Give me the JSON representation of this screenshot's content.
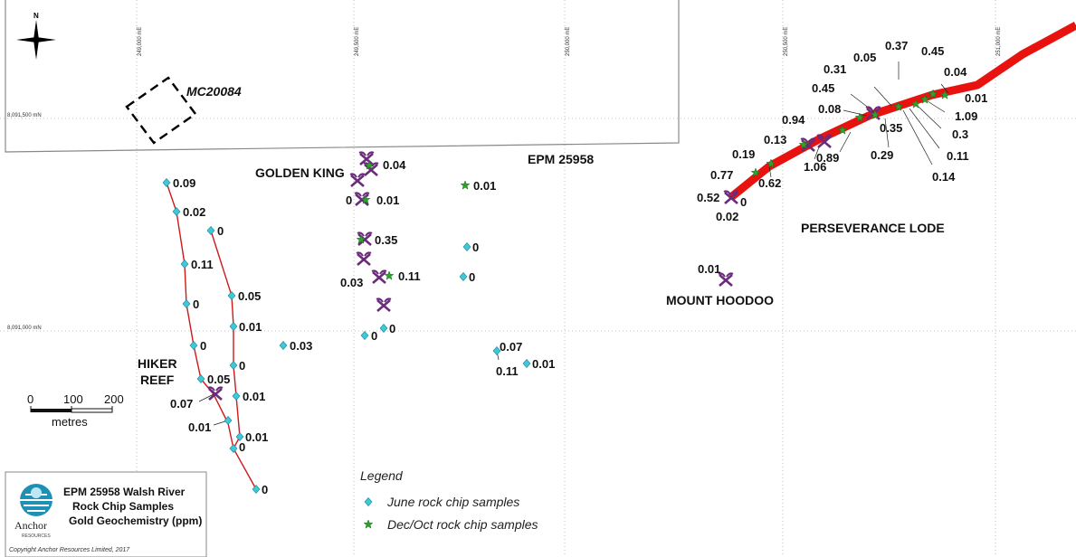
{
  "grid": {
    "easting": [
      "249,000 mE",
      "249,500 mE",
      "250,000 mE",
      "250,500 mE",
      "251,000 mE"
    ],
    "northing": [
      "8,091,500 mN",
      "8,091,000 mN"
    ]
  },
  "north_arrow": {
    "label": "N"
  },
  "labels": {
    "mc": "MC20084",
    "golden_king": "GOLDEN KING",
    "epm": "EPM 25958",
    "perseverance": "PERSEVERANCE LODE",
    "mount_hoodoo": "MOUNT HOODOO",
    "hiker_1": "HIKER",
    "hiker_2": "REEF"
  },
  "samples": {
    "hiker_west": [
      "0.09",
      "0.02",
      "0.11",
      "0",
      "0",
      "0.05",
      "0.07",
      "0.01",
      "0",
      "0"
    ],
    "hiker_east": [
      "0",
      "0.05",
      "0.01",
      "0",
      "0.01",
      "0.01",
      "0"
    ],
    "hiker_other": [
      "0.03"
    ],
    "golden_king": [
      "0.04",
      "0",
      "0.01",
      "0.35",
      "0.03",
      "0.11",
      "0",
      "0"
    ],
    "epm_area": [
      "0.01",
      "0",
      "0",
      "0.07",
      "0.11",
      "0.01"
    ],
    "mount_hoodoo": [
      "0.01"
    ],
    "perseverance": [
      "0.37",
      "0.05",
      "0.45",
      "0.31",
      "0.04",
      "0.45",
      "0.01",
      "0.08",
      "1.09",
      "0.35",
      "0.3",
      "0.94",
      "0.11",
      "0.29",
      "0.14",
      "0.13",
      "0.89",
      "1.06",
      "0.19",
      "0.62",
      "0.77",
      "0.52",
      "0",
      "0.02"
    ]
  },
  "scale": {
    "ticks": [
      "0",
      "100",
      "200"
    ],
    "unit": "metres"
  },
  "legend": {
    "title": "Legend",
    "items": [
      {
        "label": "June rock chip samples",
        "color": "#3fc8d8",
        "symbol": "diamond"
      },
      {
        "label": "Dec/Oct rock chip samples",
        "color": "#2ea02e",
        "symbol": "star"
      }
    ]
  },
  "title_block": {
    "line1": "EPM 25958 Walsh River",
    "line2": "Rock Chip Samples",
    "line3": "Gold Geochemistry (ppm)",
    "logo_text": "Anchor",
    "logo_subtext": "RESOURCES",
    "copyright": "Copyright Anchor Resources Limited, 2017"
  },
  "colors": {
    "lode": "#e8120f",
    "trace": "#cc1a1a",
    "june": "#3fc8d8",
    "decoct": "#2ea02e",
    "mine": "#6b2a7a"
  }
}
